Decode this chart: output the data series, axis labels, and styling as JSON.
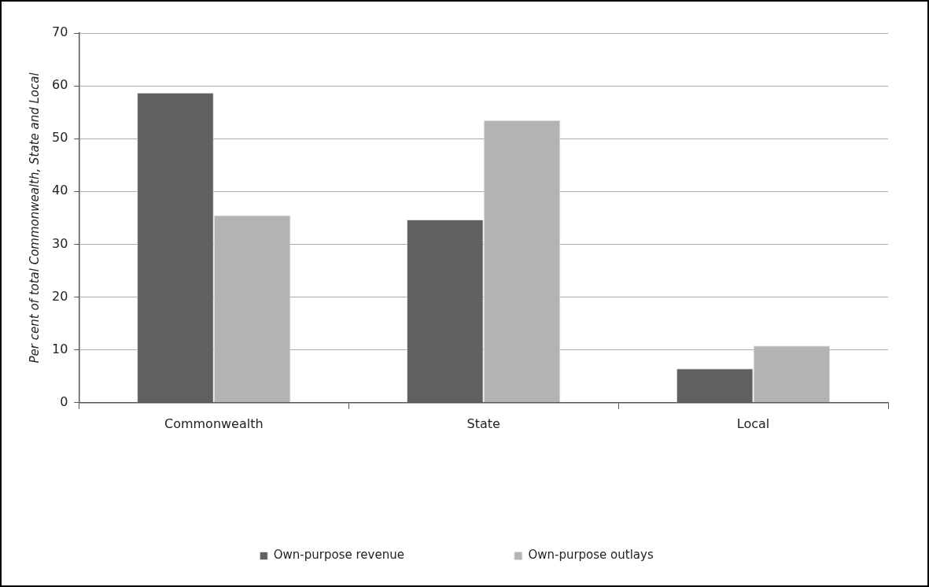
{
  "chart_data": {
    "type": "bar",
    "ylabel": "Per cent of total Commonwealth, State and Local",
    "categories": [
      "Commonwealth",
      "State",
      "Local"
    ],
    "series": [
      {
        "name": "Own-purpose revenue",
        "color": "#606060",
        "values": [
          58.7,
          34.7,
          6.5
        ]
      },
      {
        "name": "Own-purpose outlays",
        "color": "#b3b3b3",
        "values": [
          35.5,
          53.5,
          10.8
        ]
      }
    ],
    "ylim": [
      0,
      70
    ],
    "yticks": [
      0,
      10,
      20,
      30,
      40,
      50,
      60,
      70
    ],
    "grid": "y",
    "legend": "bottom"
  }
}
